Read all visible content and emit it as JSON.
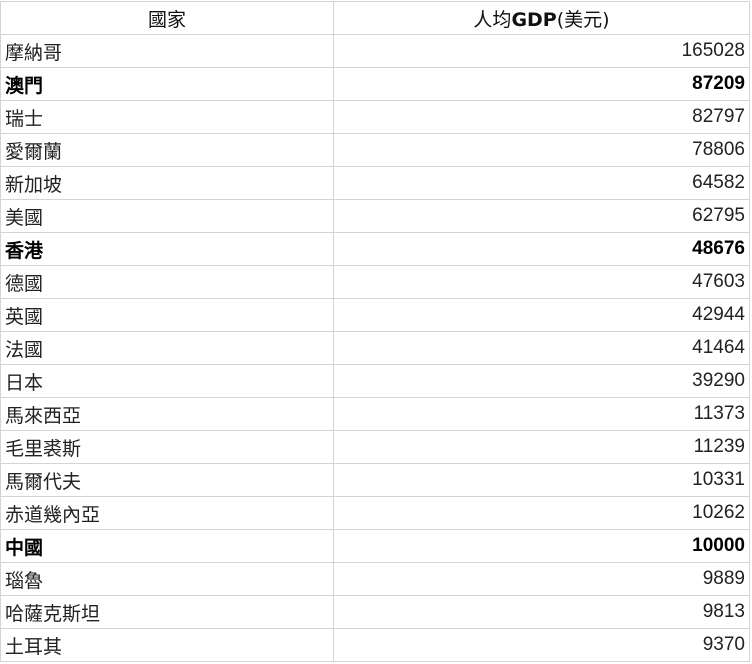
{
  "table": {
    "headers": [
      "國家",
      "人均",
      "GDP",
      "(美元)"
    ],
    "rows": [
      {
        "country": "摩納哥",
        "gdp": "165028",
        "bold": false
      },
      {
        "country": "澳門",
        "gdp": "87209",
        "bold": true
      },
      {
        "country": "瑞士",
        "gdp": "82797",
        "bold": false
      },
      {
        "country": "愛爾蘭",
        "gdp": "78806",
        "bold": false
      },
      {
        "country": "新加坡",
        "gdp": "64582",
        "bold": false
      },
      {
        "country": "美國",
        "gdp": "62795",
        "bold": false
      },
      {
        "country": "香港",
        "gdp": "48676",
        "bold": true
      },
      {
        "country": "德國",
        "gdp": "47603",
        "bold": false
      },
      {
        "country": "英國",
        "gdp": "42944",
        "bold": false
      },
      {
        "country": "法國",
        "gdp": "41464",
        "bold": false
      },
      {
        "country": "日本",
        "gdp": "39290",
        "bold": false
      },
      {
        "country": "馬來西亞",
        "gdp": "11373",
        "bold": false
      },
      {
        "country": "毛里裘斯",
        "gdp": "11239",
        "bold": false
      },
      {
        "country": "馬爾代夫",
        "gdp": "10331",
        "bold": false
      },
      {
        "country": "赤道幾內亞",
        "gdp": "10262",
        "bold": false
      },
      {
        "country": "中國",
        "gdp": "10000",
        "bold": true
      },
      {
        "country": "瑙魯",
        "gdp": "9889",
        "bold": false
      },
      {
        "country": "哈薩克斯坦",
        "gdp": "9813",
        "bold": false
      },
      {
        "country": "土耳其",
        "gdp": "9370",
        "bold": false
      }
    ]
  }
}
